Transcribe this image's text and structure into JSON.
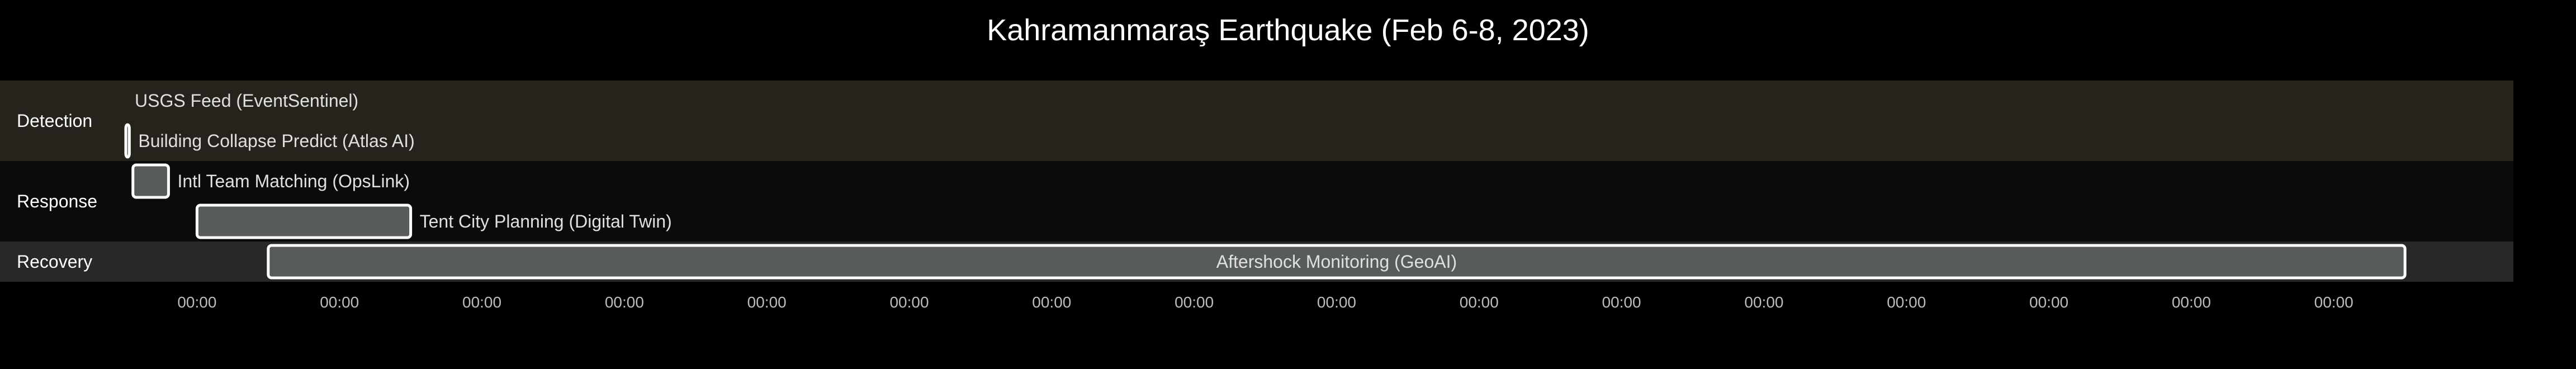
{
  "chart_data": {
    "type": "gantt",
    "title": "Kahramanmaraş Earthquake (Feb 6-8, 2023)",
    "x_range": [
      0,
      100
    ],
    "lanes": [
      {
        "name": "Detection",
        "color": "#26231d"
      },
      {
        "name": "Response",
        "color": "#0b0b0b"
      },
      {
        "name": "Recovery",
        "color": "#282828"
      }
    ],
    "tasks": [
      {
        "lane": "Detection",
        "label": "USGS Feed (EventSentinel)",
        "start": 0,
        "end": 0
      },
      {
        "lane": "Detection",
        "label": "Building Collapse Predict (Atlas AI)",
        "start": 0,
        "end": 0.15
      },
      {
        "lane": "Response",
        "label": "Intl Team Matching (OpsLink)",
        "start": 0.3,
        "end": 1.8
      },
      {
        "lane": "Response",
        "label": "Tent City Planning (Digital Twin)",
        "start": 3,
        "end": 12
      },
      {
        "lane": "Recovery",
        "label": "Aftershock Monitoring (GeoAI)",
        "start": 6,
        "end": 96
      }
    ],
    "ticks": [
      {
        "value": 3,
        "label": "00:00"
      },
      {
        "value": 9,
        "label": "00:00"
      },
      {
        "value": 15,
        "label": "00:00"
      },
      {
        "value": 21,
        "label": "00:00"
      },
      {
        "value": 27,
        "label": "00:00"
      },
      {
        "value": 33,
        "label": "00:00"
      },
      {
        "value": 39,
        "label": "00:00"
      },
      {
        "value": 45,
        "label": "00:00"
      },
      {
        "value": 51,
        "label": "00:00"
      },
      {
        "value": 57,
        "label": "00:00"
      },
      {
        "value": 63,
        "label": "00:00"
      },
      {
        "value": 69,
        "label": "00:00"
      },
      {
        "value": 75,
        "label": "00:00"
      },
      {
        "value": 81,
        "label": "00:00"
      },
      {
        "value": 87,
        "label": "00:00"
      },
      {
        "value": 93,
        "label": "00:00"
      }
    ],
    "bar_color": "#575b5c",
    "bar_outline": "#ffffff"
  }
}
